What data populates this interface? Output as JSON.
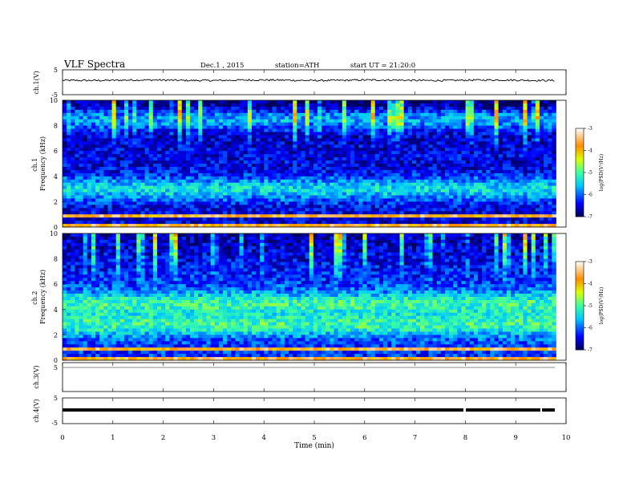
{
  "header": {
    "title": "VLF  Spectra",
    "date": "Dec.1  , 2015",
    "station": "station=ATH",
    "start": "start  UT  =   21:20:0"
  },
  "chart_data": [
    {
      "type": "line",
      "name": "ch1-waveform",
      "ylabel": "ch.1(V)",
      "ylim": [
        -5,
        5
      ],
      "y_ticks": [
        "5",
        "-5"
      ],
      "xlim": [
        0,
        10
      ],
      "mean_level": 0.8,
      "noise_amplitude": 0.35
    },
    {
      "type": "heatmap",
      "name": "ch1-spectrogram",
      "ylabel": "ch.1\nFrequency  (kHz)",
      "ylim": [
        0,
        10
      ],
      "y_ticks": [
        "0",
        "2",
        "4",
        "6",
        "8",
        "10"
      ],
      "xlim": [
        0,
        9.8
      ],
      "background_logpsd": -6.5,
      "band_centers_khz": [
        3.0,
        8.5
      ],
      "colorbar": {
        "label": "log(PSD(V²/Hz)",
        "range": [
          -7,
          -3
        ],
        "ticks": [
          "-3",
          "-4",
          "-5",
          "-6",
          "-7"
        ]
      }
    },
    {
      "type": "heatmap",
      "name": "ch2-spectrogram",
      "ylabel": "ch.2\nFrequency  (kHz)",
      "ylim": [
        0,
        10
      ],
      "y_ticks": [
        "0",
        "2",
        "4",
        "6",
        "8",
        "10"
      ],
      "xlim": [
        0,
        9.8
      ],
      "background_logpsd": -6.2,
      "band_centers_khz": [
        2.8,
        4.5
      ],
      "colorbar": {
        "label": "log(PSD(V²/Hz)",
        "range": [
          -7,
          -3
        ],
        "ticks": [
          "-3",
          "-4",
          "-5",
          "-6",
          "-7"
        ]
      }
    },
    {
      "type": "line",
      "name": "ch3-waveform",
      "ylabel": "ch.3(V)",
      "ylim": [
        -5,
        5
      ],
      "y_ticks": [
        "5"
      ],
      "xlim": [
        0,
        10
      ],
      "mean_level": 0.0
    },
    {
      "type": "line",
      "name": "ch4-waveform",
      "ylabel": "ch.4(V)",
      "ylim": [
        -5,
        5
      ],
      "y_ticks": [
        "5",
        "-5"
      ],
      "xlim": [
        0,
        10
      ],
      "mean_level": -0.3
    }
  ],
  "x_axis": {
    "label": "Time  (min)",
    "ticks": [
      "0",
      "1",
      "2",
      "3",
      "4",
      "5",
      "6",
      "7",
      "8",
      "9",
      "10"
    ]
  }
}
